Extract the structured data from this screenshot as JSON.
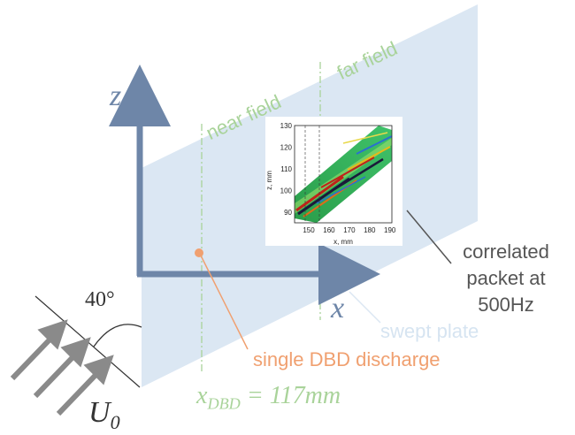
{
  "labels": {
    "z_axis": "z",
    "x_axis": "x",
    "near_field": "near field",
    "far_field": "far field",
    "correlated_line1": "correlated",
    "correlated_line2": "packet at",
    "correlated_line3": "500Hz",
    "swept_plate": "swept plate",
    "single_dbd": "single DBD discharge",
    "xdbd_equation": "x_DBD = 117mm",
    "angle": "40°",
    "u0": "U_0"
  },
  "inset": {
    "y_axis_label": "z, mm",
    "x_axis_label": "x, mm",
    "y_ticks": [
      "90",
      "100",
      "110",
      "120",
      "130"
    ],
    "x_ticks": [
      "150",
      "160",
      "170",
      "180",
      "190"
    ],
    "xlim": [
      143,
      191
    ],
    "ylim": [
      85,
      130
    ]
  },
  "colors": {
    "plate": "#dbe7f3",
    "axis": "#6e86a8",
    "region": "#a9d39a",
    "dbd": "#f0a070"
  }
}
